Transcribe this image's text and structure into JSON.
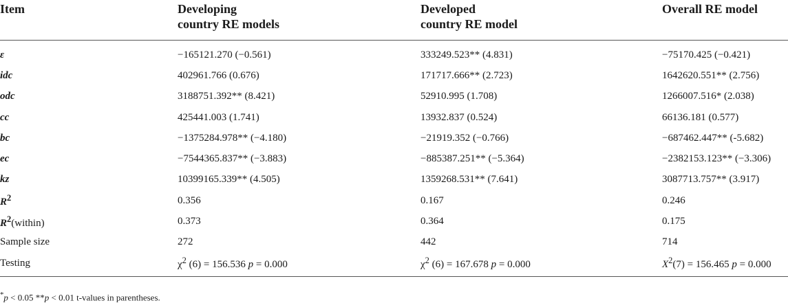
{
  "table": {
    "headers": {
      "item": "Item",
      "developing": "Developing\ncountry RE models",
      "developed": "Developed\ncountry RE model",
      "overall": "Overall RE model"
    },
    "rows": [
      {
        "item": "ε",
        "developing": "−165121.270 (−0.561)",
        "developed": "333249.523** (4.831)",
        "overall": "−75170.425 (−0.421)"
      },
      {
        "item": "idc",
        "developing": "402961.766 (0.676)",
        "developed": "171717.666** (2.723)",
        "overall": "1642620.551** (2.756)"
      },
      {
        "item": "odc",
        "developing": "3188751.392** (8.421)",
        "developed": "52910.995 (1.708)",
        "overall": "1266007.516* (2.038)"
      },
      {
        "item": "cc",
        "developing": "425441.003 (1.741)",
        "developed": "13932.837 (0.524)",
        "overall": "66136.181 (0.577)"
      },
      {
        "item": "bc",
        "developing": "−1375284.978** (−4.180)",
        "developed": "−21919.352 (−0.766)",
        "overall": "−687462.447** (-5.682)"
      },
      {
        "item": "ec",
        "developing": "−7544365.837** (−3.883)",
        "developed": "−885387.251** (−5.364)",
        "overall": "−2382153.123** (−3.306)"
      },
      {
        "item": "kz",
        "developing": "10399165.339** (4.505)",
        "developed": "1359268.531** (7.641)",
        "overall": "3087713.757** (3.917)"
      }
    ],
    "r2": {
      "label": "R",
      "sup": "2",
      "developing": "0.356",
      "developed": "0.167",
      "overall": "0.246"
    },
    "r2within": {
      "label": "R",
      "sup": "2",
      "suffix": "(within)",
      "developing": "0.373",
      "developed": "0.364",
      "overall": "0.175"
    },
    "sample": {
      "item": "Sample size",
      "developing": "272",
      "developed": "442",
      "overall": "714"
    },
    "testing": {
      "item": "Testing",
      "developing": {
        "chi": "χ",
        "sup": "2",
        "rest": " (6) = 156.536 ",
        "p": "p",
        "pval": " = 0.000"
      },
      "developed": {
        "chi": "χ",
        "sup": "2",
        "rest": " (6) = 167.678 ",
        "p": "p",
        "pval": " = 0.000"
      },
      "overall": {
        "chi": "X",
        "sup": "2",
        "rest": "(7) = 156.465 ",
        "p": "p",
        "pval": " = 0.000"
      }
    }
  },
  "footnote": {
    "star1": "*",
    "p1": "p",
    "mid1": " < 0.05 **",
    "p2": "p",
    "mid2": " < 0.01 t-values in parentheses."
  }
}
